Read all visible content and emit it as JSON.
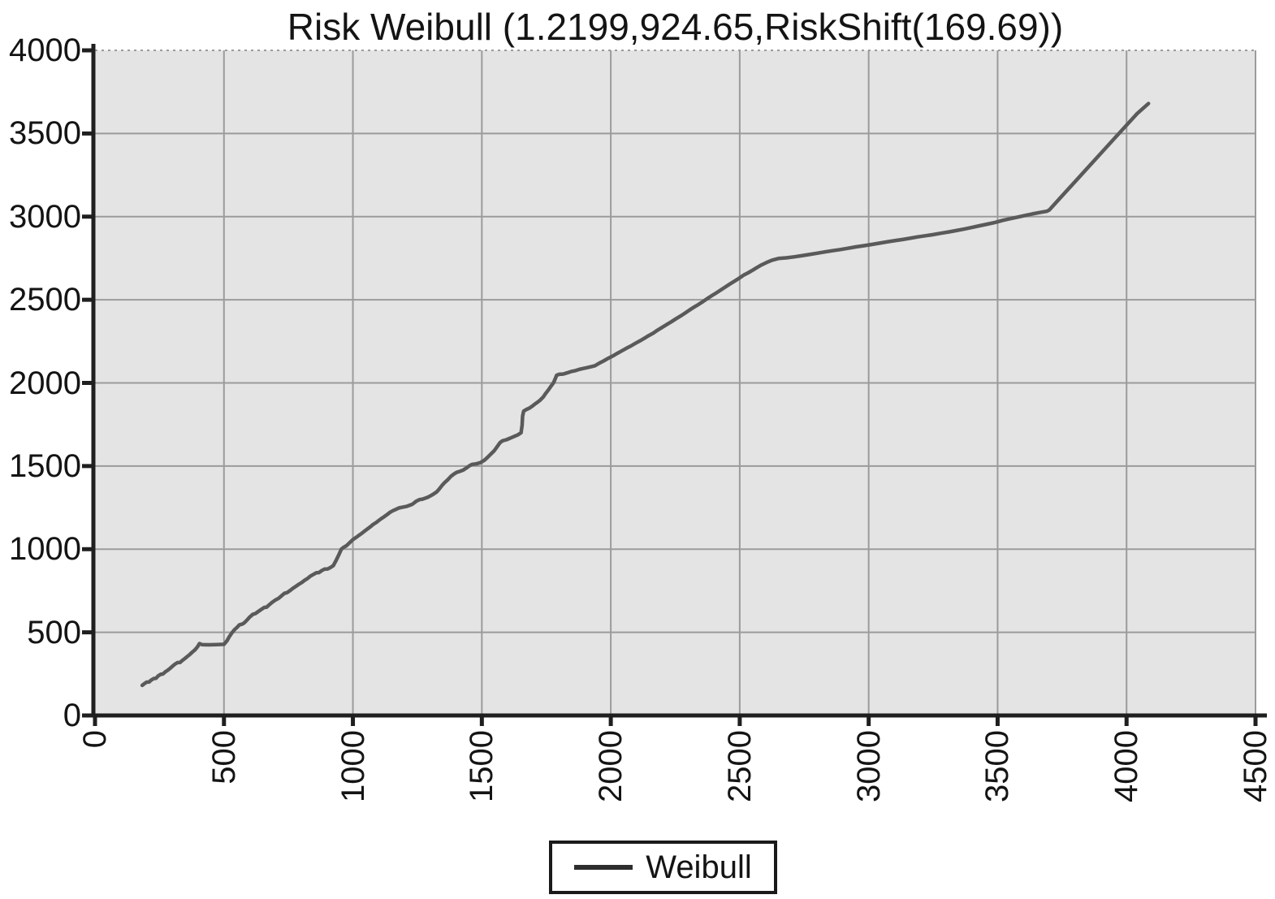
{
  "title": "Risk Weibull (1.2199,924.65,RiskShift(169.69))",
  "legend": {
    "entries": [
      {
        "label": "Weibull",
        "swatch": "line"
      }
    ],
    "position": "bottom-center"
  },
  "colors": {
    "page_bg": "#ffffff",
    "plot_bg": "#e4e4e5",
    "grid": "#9b9b9b",
    "axis": "#1f1f1f",
    "text": "#141414",
    "curve": "#5a5a5a",
    "legend_border": "#1a1a1a",
    "legend_bg": "#ffffff"
  },
  "chart_data": {
    "type": "line",
    "title": "Risk Weibull (1.2199,924.65,RiskShift(169.69))",
    "xlabel": "",
    "ylabel": "",
    "xlim": [
      0,
      4500
    ],
    "ylim": [
      0,
      4000
    ],
    "xticks": [
      0,
      500,
      1000,
      1500,
      2000,
      2500,
      3000,
      3500,
      4000,
      4500
    ],
    "yticks": [
      0,
      500,
      1000,
      1500,
      2000,
      2500,
      3000,
      3500,
      4000
    ],
    "grid": true,
    "x_tick_rotation": -90,
    "legend_position": "bottom-center",
    "series": [
      {
        "name": "Weibull",
        "color": "#5a5a5a",
        "points": [
          [
            183,
            181
          ],
          [
            192,
            192
          ],
          [
            200,
            200
          ],
          [
            210,
            201
          ],
          [
            218,
            213
          ],
          [
            228,
            222
          ],
          [
            236,
            223
          ],
          [
            245,
            238
          ],
          [
            255,
            248
          ],
          [
            263,
            249
          ],
          [
            272,
            262
          ],
          [
            282,
            272
          ],
          [
            290,
            282
          ],
          [
            300,
            296
          ],
          [
            310,
            308
          ],
          [
            320,
            318
          ],
          [
            330,
            319
          ],
          [
            338,
            330
          ],
          [
            348,
            342
          ],
          [
            358,
            355
          ],
          [
            368,
            368
          ],
          [
            378,
            382
          ],
          [
            388,
            395
          ],
          [
            397,
            412
          ],
          [
            405,
            432
          ],
          [
            415,
            426
          ],
          [
            440,
            425
          ],
          [
            470,
            426
          ],
          [
            500,
            428
          ],
          [
            512,
            450
          ],
          [
            520,
            472
          ],
          [
            530,
            495
          ],
          [
            540,
            515
          ],
          [
            552,
            532
          ],
          [
            560,
            545
          ],
          [
            570,
            549
          ],
          [
            578,
            556
          ],
          [
            590,
            575
          ],
          [
            600,
            592
          ],
          [
            612,
            608
          ],
          [
            622,
            613
          ],
          [
            633,
            625
          ],
          [
            645,
            638
          ],
          [
            657,
            650
          ],
          [
            665,
            651
          ],
          [
            675,
            665
          ],
          [
            688,
            682
          ],
          [
            700,
            695
          ],
          [
            712,
            705
          ],
          [
            722,
            718
          ],
          [
            734,
            734
          ],
          [
            745,
            739
          ],
          [
            757,
            752
          ],
          [
            768,
            766
          ],
          [
            780,
            778
          ],
          [
            790,
            789
          ],
          [
            802,
            800
          ],
          [
            812,
            812
          ],
          [
            824,
            824
          ],
          [
            835,
            838
          ],
          [
            846,
            848
          ],
          [
            858,
            858
          ],
          [
            868,
            859
          ],
          [
            880,
            872
          ],
          [
            890,
            880
          ],
          [
            902,
            881
          ],
          [
            912,
            889
          ],
          [
            924,
            901
          ],
          [
            934,
            930
          ],
          [
            945,
            965
          ],
          [
            955,
            1000
          ],
          [
            965,
            1012
          ],
          [
            975,
            1021
          ],
          [
            988,
            1040
          ],
          [
            1000,
            1058
          ],
          [
            1012,
            1070
          ],
          [
            1022,
            1082
          ],
          [
            1034,
            1095
          ],
          [
            1045,
            1108
          ],
          [
            1055,
            1120
          ],
          [
            1068,
            1135
          ],
          [
            1078,
            1148
          ],
          [
            1090,
            1160
          ],
          [
            1100,
            1172
          ],
          [
            1112,
            1186
          ],
          [
            1122,
            1196
          ],
          [
            1134,
            1210
          ],
          [
            1144,
            1222
          ],
          [
            1156,
            1232
          ],
          [
            1166,
            1239
          ],
          [
            1178,
            1248
          ],
          [
            1190,
            1252
          ],
          [
            1210,
            1258
          ],
          [
            1230,
            1270
          ],
          [
            1245,
            1288
          ],
          [
            1258,
            1298
          ],
          [
            1270,
            1301
          ],
          [
            1290,
            1312
          ],
          [
            1302,
            1322
          ],
          [
            1312,
            1331
          ],
          [
            1325,
            1345
          ],
          [
            1335,
            1362
          ],
          [
            1345,
            1382
          ],
          [
            1355,
            1400
          ],
          [
            1368,
            1418
          ],
          [
            1380,
            1438
          ],
          [
            1392,
            1452
          ],
          [
            1402,
            1462
          ],
          [
            1415,
            1468
          ],
          [
            1428,
            1476
          ],
          [
            1440,
            1488
          ],
          [
            1452,
            1502
          ],
          [
            1462,
            1510
          ],
          [
            1478,
            1513
          ],
          [
            1495,
            1521
          ],
          [
            1510,
            1535
          ],
          [
            1522,
            1552
          ],
          [
            1535,
            1572
          ],
          [
            1548,
            1592
          ],
          [
            1560,
            1618
          ],
          [
            1570,
            1640
          ],
          [
            1580,
            1652
          ],
          [
            1595,
            1658
          ],
          [
            1610,
            1668
          ],
          [
            1625,
            1678
          ],
          [
            1640,
            1688
          ],
          [
            1652,
            1700
          ],
          [
            1656,
            1745
          ],
          [
            1658,
            1800
          ],
          [
            1662,
            1830
          ],
          [
            1672,
            1840
          ],
          [
            1685,
            1849
          ],
          [
            1695,
            1860
          ],
          [
            1705,
            1872
          ],
          [
            1715,
            1883
          ],
          [
            1725,
            1895
          ],
          [
            1738,
            1915
          ],
          [
            1748,
            1938
          ],
          [
            1758,
            1958
          ],
          [
            1768,
            1980
          ],
          [
            1778,
            2001
          ],
          [
            1785,
            2026
          ],
          [
            1790,
            2046
          ],
          [
            1800,
            2052
          ],
          [
            1815,
            2053
          ],
          [
            1830,
            2060
          ],
          [
            1845,
            2068
          ],
          [
            1860,
            2073
          ],
          [
            1875,
            2080
          ],
          [
            1890,
            2086
          ],
          [
            1905,
            2091
          ],
          [
            1920,
            2096
          ],
          [
            1938,
            2103
          ],
          [
            1955,
            2118
          ],
          [
            1972,
            2132
          ],
          [
            1990,
            2148
          ],
          [
            2008,
            2162
          ],
          [
            2025,
            2178
          ],
          [
            2042,
            2192
          ],
          [
            2060,
            2208
          ],
          [
            2078,
            2222
          ],
          [
            2095,
            2238
          ],
          [
            2112,
            2252
          ],
          [
            2130,
            2268
          ],
          [
            2148,
            2285
          ],
          [
            2165,
            2300
          ],
          [
            2182,
            2318
          ],
          [
            2200,
            2335
          ],
          [
            2218,
            2352
          ],
          [
            2235,
            2368
          ],
          [
            2252,
            2385
          ],
          [
            2270,
            2402
          ],
          [
            2288,
            2420
          ],
          [
            2305,
            2438
          ],
          [
            2322,
            2455
          ],
          [
            2340,
            2472
          ],
          [
            2358,
            2490
          ],
          [
            2375,
            2508
          ],
          [
            2392,
            2525
          ],
          [
            2410,
            2542
          ],
          [
            2428,
            2560
          ],
          [
            2445,
            2578
          ],
          [
            2462,
            2595
          ],
          [
            2480,
            2612
          ],
          [
            2498,
            2630
          ],
          [
            2515,
            2648
          ],
          [
            2532,
            2662
          ],
          [
            2550,
            2678
          ],
          [
            2568,
            2695
          ],
          [
            2585,
            2710
          ],
          [
            2605,
            2725
          ],
          [
            2625,
            2738
          ],
          [
            2650,
            2748
          ],
          [
            2680,
            2752
          ],
          [
            2710,
            2758
          ],
          [
            2740,
            2765
          ],
          [
            2770,
            2772
          ],
          [
            2800,
            2780
          ],
          [
            2830,
            2788
          ],
          [
            2860,
            2795
          ],
          [
            2890,
            2802
          ],
          [
            2920,
            2810
          ],
          [
            2950,
            2818
          ],
          [
            2980,
            2825
          ],
          [
            3010,
            2832
          ],
          [
            3040,
            2840
          ],
          [
            3070,
            2848
          ],
          [
            3100,
            2855
          ],
          [
            3130,
            2862
          ],
          [
            3160,
            2870
          ],
          [
            3190,
            2878
          ],
          [
            3220,
            2885
          ],
          [
            3250,
            2892
          ],
          [
            3280,
            2900
          ],
          [
            3310,
            2908
          ],
          [
            3340,
            2916
          ],
          [
            3370,
            2925
          ],
          [
            3400,
            2935
          ],
          [
            3430,
            2945
          ],
          [
            3460,
            2955
          ],
          [
            3490,
            2965
          ],
          [
            3520,
            2978
          ],
          [
            3550,
            2988
          ],
          [
            3580,
            2998
          ],
          [
            3610,
            3008
          ],
          [
            3640,
            3018
          ],
          [
            3665,
            3025
          ],
          [
            3690,
            3032
          ],
          [
            3700,
            3040
          ],
          [
            3750,
            3125
          ],
          [
            3800,
            3210
          ],
          [
            3850,
            3295
          ],
          [
            3900,
            3380
          ],
          [
            3950,
            3465
          ],
          [
            4000,
            3550
          ],
          [
            4040,
            3618
          ],
          [
            4085,
            3680
          ]
        ]
      }
    ]
  }
}
